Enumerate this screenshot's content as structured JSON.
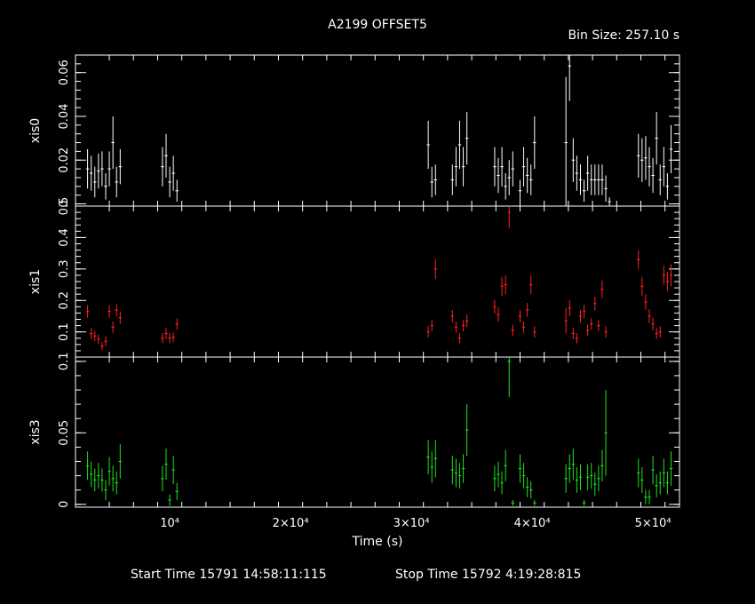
{
  "header": {
    "title": "A2199 OFFSET5",
    "bin_size": "Bin Size: 257.10 s"
  },
  "footer": {
    "start_time": "Start Time 15791 14:58:11:115",
    "stop_time": "Stop Time 15792  4:19:28:815"
  },
  "colors": {
    "background": "#000000",
    "axes": "#ffffff",
    "xis0": "#ffffff",
    "xis1": "#ff2020",
    "xis3": "#20e020"
  },
  "chart_data": [
    {
      "type": "scatter",
      "name": "xis0",
      "ylabel": "xis0",
      "xlim": [
        2200,
        52200
      ],
      "ylim": [
        -0.001,
        0.068
      ],
      "yticks": [
        {
          "v": 0.0,
          "label": "0"
        },
        {
          "v": 0.02,
          "label": "0.02"
        },
        {
          "v": 0.04,
          "label": "0.04"
        },
        {
          "v": 0.06,
          "label": "0.06"
        }
      ],
      "points": [
        [
          3200,
          0.016,
          0.009
        ],
        [
          3500,
          0.014,
          0.008
        ],
        [
          3800,
          0.01,
          0.007
        ],
        [
          4100,
          0.015,
          0.008
        ],
        [
          4400,
          0.016,
          0.008
        ],
        [
          4700,
          0.008,
          0.006
        ],
        [
          5000,
          0.016,
          0.008
        ],
        [
          5300,
          0.028,
          0.012
        ],
        [
          5600,
          0.01,
          0.007
        ],
        [
          5900,
          0.017,
          0.008
        ],
        [
          9400,
          0.017,
          0.009
        ],
        [
          9700,
          0.022,
          0.01
        ],
        [
          10000,
          0.01,
          0.007
        ],
        [
          10300,
          0.014,
          0.008
        ],
        [
          10600,
          0.006,
          0.005
        ],
        [
          31400,
          0.027,
          0.011
        ],
        [
          31700,
          0.01,
          0.007
        ],
        [
          32000,
          0.011,
          0.007
        ],
        [
          33400,
          0.011,
          0.007
        ],
        [
          33700,
          0.017,
          0.009
        ],
        [
          34000,
          0.027,
          0.011
        ],
        [
          34300,
          0.017,
          0.009
        ],
        [
          34600,
          0.03,
          0.012
        ],
        [
          36900,
          0.017,
          0.009
        ],
        [
          37200,
          0.013,
          0.008
        ],
        [
          37500,
          0.017,
          0.009
        ],
        [
          37800,
          0.008,
          0.006
        ],
        [
          38100,
          0.012,
          0.008
        ],
        [
          38400,
          0.016,
          0.008
        ],
        [
          39000,
          0.006,
          0.005
        ],
        [
          39300,
          0.017,
          0.009
        ],
        [
          39600,
          0.013,
          0.008
        ],
        [
          39900,
          0.011,
          0.007
        ],
        [
          40200,
          0.028,
          0.012
        ],
        [
          42800,
          0.028,
          0.03
        ],
        [
          43100,
          0.063,
          0.016
        ],
        [
          43400,
          0.02,
          0.01
        ],
        [
          43700,
          0.014,
          0.008
        ],
        [
          44000,
          0.011,
          0.007
        ],
        [
          44300,
          0.006,
          0.005
        ],
        [
          44600,
          0.014,
          0.008
        ],
        [
          44900,
          0.011,
          0.007
        ],
        [
          45200,
          0.011,
          0.007
        ],
        [
          45500,
          0.011,
          0.007
        ],
        [
          45800,
          0.011,
          0.007
        ],
        [
          46100,
          0.007,
          0.006
        ],
        [
          46400,
          0.001,
          0.002
        ],
        [
          48800,
          0.022,
          0.01
        ],
        [
          49100,
          0.02,
          0.01
        ],
        [
          49400,
          0.021,
          0.01
        ],
        [
          49700,
          0.017,
          0.009
        ],
        [
          50000,
          0.013,
          0.008
        ],
        [
          50300,
          0.03,
          0.012
        ],
        [
          50600,
          0.011,
          0.007
        ],
        [
          50900,
          0.017,
          0.009
        ],
        [
          51200,
          0.008,
          0.006
        ],
        [
          51500,
          0.025,
          0.011
        ]
      ]
    },
    {
      "type": "scatter",
      "name": "xis1",
      "ylabel": "xis1",
      "xlim": [
        2200,
        52200
      ],
      "ylim": [
        0.02,
        0.5
      ],
      "yticks": [
        {
          "v": 0.1,
          "label": "0.1"
        },
        {
          "v": 0.2,
          "label": "0.2"
        },
        {
          "v": 0.3,
          "label": "0.3"
        },
        {
          "v": 0.4,
          "label": "0.4"
        },
        {
          "v": 0.5,
          "label": "0.5"
        }
      ],
      "points": [
        [
          3200,
          0.165,
          0.02
        ],
        [
          3500,
          0.095,
          0.018
        ],
        [
          3800,
          0.087,
          0.016
        ],
        [
          4100,
          0.077,
          0.015
        ],
        [
          4400,
          0.055,
          0.013
        ],
        [
          4700,
          0.07,
          0.015
        ],
        [
          5000,
          0.165,
          0.02
        ],
        [
          5300,
          0.115,
          0.018
        ],
        [
          5600,
          0.169,
          0.02
        ],
        [
          5900,
          0.145,
          0.02
        ],
        [
          9400,
          0.08,
          0.016
        ],
        [
          9700,
          0.095,
          0.018
        ],
        [
          10000,
          0.08,
          0.016
        ],
        [
          10300,
          0.083,
          0.016
        ],
        [
          10600,
          0.125,
          0.018
        ],
        [
          31400,
          0.1,
          0.018
        ],
        [
          31700,
          0.12,
          0.018
        ],
        [
          32000,
          0.3,
          0.032
        ],
        [
          33400,
          0.15,
          0.02
        ],
        [
          33700,
          0.115,
          0.018
        ],
        [
          34000,
          0.08,
          0.016
        ],
        [
          34300,
          0.12,
          0.018
        ],
        [
          34600,
          0.135,
          0.02
        ],
        [
          36900,
          0.18,
          0.022
        ],
        [
          37200,
          0.155,
          0.022
        ],
        [
          37500,
          0.245,
          0.03
        ],
        [
          37800,
          0.25,
          0.03
        ],
        [
          38100,
          0.48,
          0.05
        ],
        [
          38400,
          0.105,
          0.018
        ],
        [
          39000,
          0.15,
          0.02
        ],
        [
          39300,
          0.115,
          0.018
        ],
        [
          39600,
          0.17,
          0.022
        ],
        [
          39900,
          0.25,
          0.03
        ],
        [
          40200,
          0.1,
          0.018
        ],
        [
          42800,
          0.135,
          0.04
        ],
        [
          43100,
          0.175,
          0.025
        ],
        [
          43400,
          0.095,
          0.018
        ],
        [
          43700,
          0.08,
          0.016
        ],
        [
          44000,
          0.15,
          0.02
        ],
        [
          44300,
          0.165,
          0.022
        ],
        [
          44600,
          0.105,
          0.018
        ],
        [
          44900,
          0.125,
          0.018
        ],
        [
          45200,
          0.19,
          0.022
        ],
        [
          45500,
          0.12,
          0.018
        ],
        [
          45800,
          0.235,
          0.028
        ],
        [
          46100,
          0.1,
          0.018
        ],
        [
          48800,
          0.33,
          0.03
        ],
        [
          49100,
          0.245,
          0.03
        ],
        [
          49400,
          0.195,
          0.025
        ],
        [
          49700,
          0.15,
          0.022
        ],
        [
          50000,
          0.125,
          0.02
        ],
        [
          50300,
          0.095,
          0.018
        ],
        [
          50600,
          0.1,
          0.018
        ],
        [
          50900,
          0.28,
          0.03
        ],
        [
          51200,
          0.26,
          0.03
        ],
        [
          51500,
          0.28,
          0.035
        ]
      ]
    },
    {
      "type": "scatter",
      "name": "xis3",
      "ylabel": "xis3",
      "xlim": [
        2200,
        52200
      ],
      "ylim": [
        -0.002,
        0.103
      ],
      "yticks": [
        {
          "v": 0.0,
          "label": "0"
        },
        {
          "v": 0.05,
          "label": "0.05"
        },
        {
          "v": 0.1,
          "label": "0.1"
        }
      ],
      "points": [
        [
          3200,
          0.027,
          0.01
        ],
        [
          3500,
          0.021,
          0.009
        ],
        [
          3800,
          0.017,
          0.008
        ],
        [
          4100,
          0.02,
          0.009
        ],
        [
          4400,
          0.017,
          0.008
        ],
        [
          4700,
          0.01,
          0.007
        ],
        [
          5000,
          0.023,
          0.01
        ],
        [
          5300,
          0.018,
          0.009
        ],
        [
          5600,
          0.015,
          0.008
        ],
        [
          5900,
          0.03,
          0.012
        ],
        [
          9400,
          0.018,
          0.009
        ],
        [
          9700,
          0.028,
          0.011
        ],
        [
          10000,
          0.003,
          0.004
        ],
        [
          10300,
          0.024,
          0.01
        ],
        [
          10600,
          0.009,
          0.006
        ],
        [
          31400,
          0.033,
          0.012
        ],
        [
          31700,
          0.026,
          0.011
        ],
        [
          32000,
          0.032,
          0.013
        ],
        [
          33400,
          0.024,
          0.01
        ],
        [
          33700,
          0.022,
          0.01
        ],
        [
          34000,
          0.02,
          0.009
        ],
        [
          34300,
          0.025,
          0.01
        ],
        [
          34600,
          0.052,
          0.018
        ],
        [
          36900,
          0.018,
          0.009
        ],
        [
          37200,
          0.021,
          0.009
        ],
        [
          37500,
          0.015,
          0.008
        ],
        [
          37800,
          0.027,
          0.011
        ],
        [
          38100,
          0.1,
          0.025
        ],
        [
          38400,
          0.001,
          0.002
        ],
        [
          39000,
          0.025,
          0.01
        ],
        [
          39300,
          0.02,
          0.009
        ],
        [
          39600,
          0.012,
          0.007
        ],
        [
          39900,
          0.01,
          0.006
        ],
        [
          40200,
          0.001,
          0.002
        ],
        [
          42800,
          0.018,
          0.01
        ],
        [
          43100,
          0.025,
          0.01
        ],
        [
          43400,
          0.028,
          0.011
        ],
        [
          43700,
          0.017,
          0.009
        ],
        [
          44000,
          0.019,
          0.009
        ],
        [
          44300,
          0.001,
          0.002
        ],
        [
          44600,
          0.019,
          0.009
        ],
        [
          44900,
          0.02,
          0.009
        ],
        [
          45200,
          0.014,
          0.008
        ],
        [
          45500,
          0.018,
          0.009
        ],
        [
          45800,
          0.027,
          0.011
        ],
        [
          46100,
          0.05,
          0.03
        ],
        [
          48800,
          0.022,
          0.01
        ],
        [
          49100,
          0.017,
          0.009
        ],
        [
          49400,
          0.005,
          0.005
        ],
        [
          49700,
          0.005,
          0.005
        ],
        [
          50000,
          0.024,
          0.01
        ],
        [
          50300,
          0.013,
          0.008
        ],
        [
          50600,
          0.015,
          0.008
        ],
        [
          50900,
          0.022,
          0.01
        ],
        [
          51200,
          0.015,
          0.008
        ],
        [
          51500,
          0.025,
          0.012
        ]
      ]
    }
  ],
  "xaxis": {
    "label": "Time (s)",
    "ticks": [
      {
        "v": 10000,
        "label": "10⁴"
      },
      {
        "v": 20000,
        "label": "2×10⁴"
      },
      {
        "v": 30000,
        "label": "3×10⁴"
      },
      {
        "v": 40000,
        "label": "4×10⁴"
      },
      {
        "v": 50000,
        "label": "5×10⁴"
      }
    ]
  }
}
